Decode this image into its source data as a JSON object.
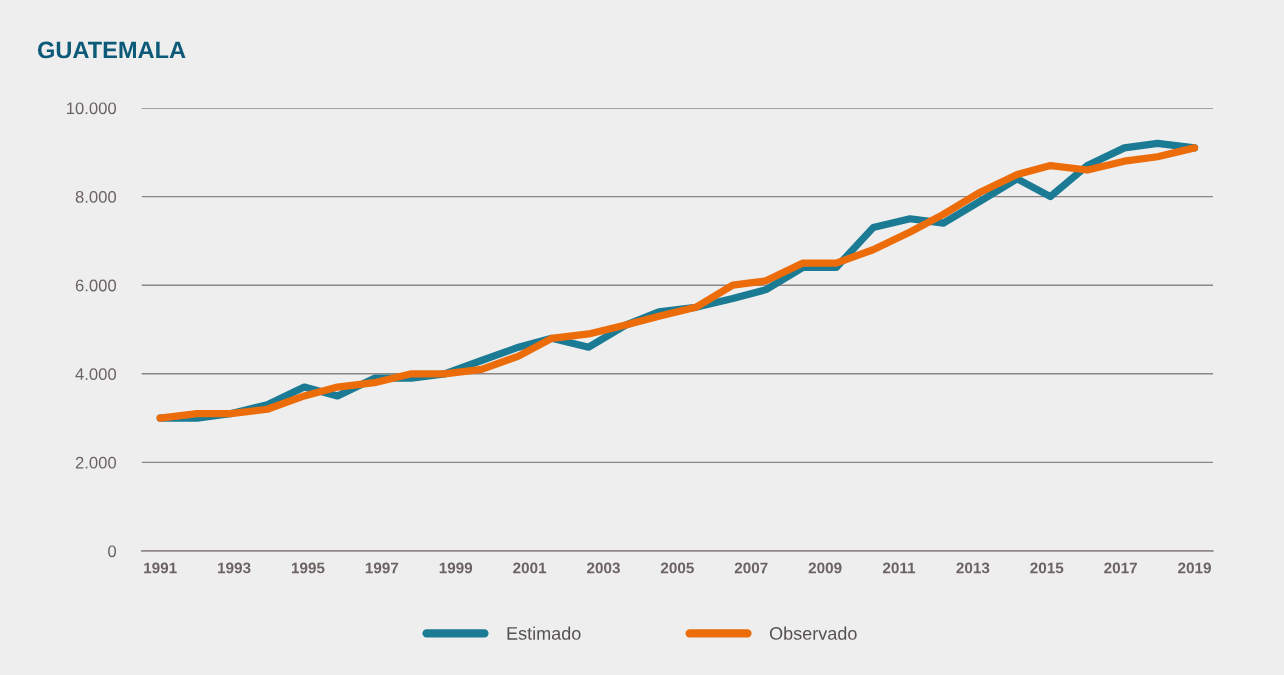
{
  "chart_data": {
    "type": "line",
    "title": "GUATEMALA",
    "x": [
      1991.0,
      1992.0,
      1992.9,
      1993.9,
      1994.9,
      1995.8,
      1996.8,
      1997.8,
      1998.7,
      1999.7,
      2000.7,
      2001.6,
      2002.6,
      2003.6,
      2004.5,
      2005.5,
      2006.5,
      2007.4,
      2008.4,
      2009.3,
      2010.3,
      2011.3,
      2012.2,
      2013.2,
      2014.2,
      2015.1,
      2016.1,
      2017.1,
      2018.0,
      2019.0
    ],
    "series": [
      {
        "name": "Estimado",
        "color": "#1b7b94",
        "values": [
          3000,
          3000,
          3100,
          3300,
          3700,
          3500,
          3900,
          3900,
          4000,
          4300,
          4600,
          4800,
          4600,
          5100,
          5400,
          5500,
          5700,
          5900,
          6400,
          6400,
          7300,
          7500,
          7400,
          7900,
          8400,
          8000,
          8700,
          9100,
          9200,
          9100
        ]
      },
      {
        "name": "Observado",
        "color": "#ec6c0a",
        "values": [
          3000,
          3100,
          3100,
          3200,
          3500,
          3700,
          3800,
          4000,
          4000,
          4100,
          4400,
          4800,
          4900,
          5100,
          5300,
          5500,
          6000,
          6100,
          6500,
          6500,
          6800,
          7200,
          7600,
          8100,
          8500,
          8700,
          8600,
          8800,
          8900,
          9100
        ]
      }
    ],
    "xlim": [
      1990.5,
      2019.5
    ],
    "xticks": [
      1991,
      1993,
      1995,
      1997,
      1999,
      2001,
      2003,
      2005,
      2007,
      2009,
      2011,
      2013,
      2015,
      2017,
      2019
    ],
    "ylim": [
      0,
      10000
    ],
    "yticks": [
      0,
      {
        "value": 2000,
        "label": "2.000"
      },
      {
        "value": 4000,
        "label": "4.000"
      },
      {
        "value": 6000,
        "label": "6.000"
      },
      {
        "value": 8000,
        "label": "8.000"
      },
      {
        "value": 10000,
        "label": "10.000"
      }
    ],
    "grid": "y",
    "legend": "bottom",
    "line_style": "solid"
  }
}
